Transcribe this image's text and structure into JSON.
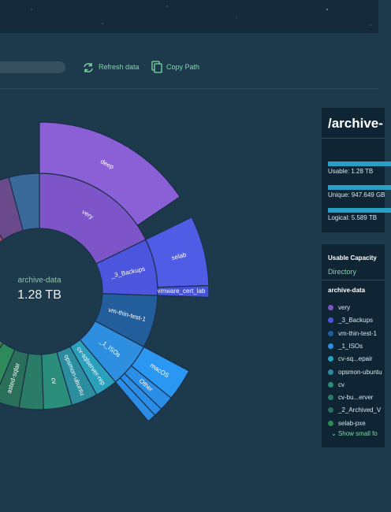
{
  "toolbar": {
    "refresh": "Refresh data",
    "copy": "Copy Path"
  },
  "sunburst": {
    "center_label": "archive-data",
    "center_value": "1.28 TB",
    "ring1": [
      {
        "label": "very",
        "color": "#7d55c9"
      },
      {
        "label": "_3_Backups",
        "color": "#4b55dd"
      },
      {
        "label": "vm-thin-test-1",
        "color": "#235e9c"
      },
      {
        "label": "_1_ISOs",
        "color": "#2e8fe0"
      },
      {
        "label": "cv-sqlserver-rep",
        "color": "#2aa0bd"
      },
      {
        "label": "opsmon-ubuntu",
        "color": "#2b8d9e"
      },
      {
        "label": "cv",
        "color": "#2a8e7a"
      },
      {
        "label": null,
        "color": "#2a7c67"
      },
      {
        "label": "asted-sqlar",
        "color": "#2a6f5a"
      },
      {
        "label": null,
        "color": "#2f8a5a"
      },
      {
        "label": null,
        "color": "#3f7b4a"
      },
      {
        "label": null,
        "color": "#6a6a3a"
      },
      {
        "label": null,
        "color": "#8a5a3a"
      },
      {
        "label": null,
        "color": "#9a4a5a"
      },
      {
        "label": null,
        "color": "#6a4a8a"
      },
      {
        "label": null,
        "color": "#3a6a9a"
      }
    ],
    "ring2": [
      {
        "label": "deep",
        "color": "#8b60d6"
      },
      {
        "label": "selab",
        "color": "#4f5ce6"
      },
      {
        "label": "vmware_cert_lab",
        "color": "#4553d8"
      },
      {
        "label": "macOS",
        "color": "#2a98f2"
      },
      {
        "label": "Other",
        "color": "#2a8ee6"
      },
      {
        "label": null,
        "color": "#2a8ee6"
      },
      {
        "label": null,
        "color": "#2a8ee6"
      }
    ]
  },
  "details": {
    "title": "/archive-",
    "usable": "Usable: 1.28 TB",
    "unique": "Unique: 947.649 GB",
    "logical": "Logical: 5.589 TB"
  },
  "legend": {
    "title": "Usable Capacity",
    "tab": "Directory",
    "root": "archive-data",
    "items": [
      {
        "name": "very",
        "color": "#7d55c9"
      },
      {
        "name": "_3_Backups",
        "color": "#4b55dd"
      },
      {
        "name": "vm-thin-test-1",
        "color": "#235e9c"
      },
      {
        "name": "_1_ISOs",
        "color": "#2e8fe0"
      },
      {
        "name": "cv-sq...epair",
        "color": "#2aa0bd"
      },
      {
        "name": "opsmon-ubuntu",
        "color": "#2b8d9e"
      },
      {
        "name": "cv",
        "color": "#2a8e7a"
      },
      {
        "name": "cv-bu...erver",
        "color": "#2a7c67"
      },
      {
        "name": "_2_Archived_V",
        "color": "#2a6f5a"
      },
      {
        "name": "selab-pxe",
        "color": "#2f8a5a"
      }
    ],
    "more": "Show small fo"
  }
}
